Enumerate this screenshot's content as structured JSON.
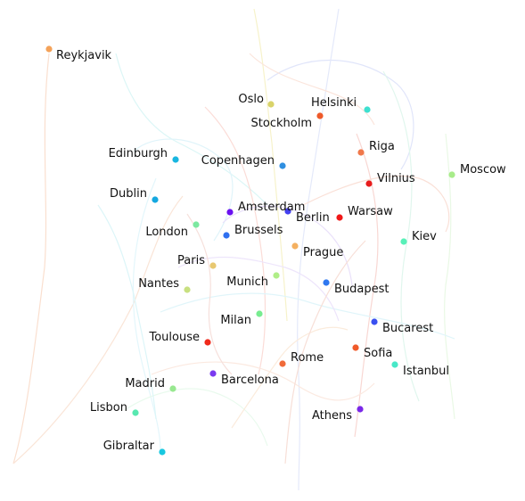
{
  "cities": [
    {
      "name": "Reykjavik",
      "color": "#f4a259"
    },
    {
      "name": "Oslo",
      "color": "#d9d36a"
    },
    {
      "name": "Helsinki",
      "color": "#ee5a2a"
    },
    {
      "name": "Stockholm",
      "color": "#3ee0d0"
    },
    {
      "name": "Riga",
      "color": "#f0784a"
    },
    {
      "name": "Moscow",
      "color": "#a8ec8a"
    },
    {
      "name": "Edinburgh",
      "color": "#19b6e0"
    },
    {
      "name": "Copenhagen",
      "color": "#2f8fe0"
    },
    {
      "name": "Vilnius",
      "color": "#e81c1c"
    },
    {
      "name": "Dublin",
      "color": "#14a8e0"
    },
    {
      "name": "Amsterdam",
      "color": "#6a10f0"
    },
    {
      "name": "Berlin",
      "color": "#4440f0"
    },
    {
      "name": "Warsaw",
      "color": "#f01818"
    },
    {
      "name": "London",
      "color": "#7ce8a0"
    },
    {
      "name": "Brussels",
      "color": "#2f70f0"
    },
    {
      "name": "Kiev",
      "color": "#58f0b8"
    },
    {
      "name": "Prague",
      "color": "#f4b060"
    },
    {
      "name": "Paris",
      "color": "#e8c870"
    },
    {
      "name": "Munich",
      "color": "#b0ee88"
    },
    {
      "name": "Nantes",
      "color": "#c8e080"
    },
    {
      "name": "Budapest",
      "color": "#2f78f0"
    },
    {
      "name": "Milan",
      "color": "#78ec90"
    },
    {
      "name": "Bucarest",
      "color": "#3a50f0"
    },
    {
      "name": "Toulouse",
      "color": "#f02a1c"
    },
    {
      "name": "Sofia",
      "color": "#f05a2a"
    },
    {
      "name": "Rome",
      "color": "#f06a3a"
    },
    {
      "name": "Istanbul",
      "color": "#48e8c8"
    },
    {
      "name": "Barcelona",
      "color": "#7a3af0"
    },
    {
      "name": "Madrid",
      "color": "#98e890"
    },
    {
      "name": "Lisbon",
      "color": "#58e8b0"
    },
    {
      "name": "Athens",
      "color": "#7a28e8"
    },
    {
      "name": "Gibraltar",
      "color": "#18c8e0"
    }
  ]
}
